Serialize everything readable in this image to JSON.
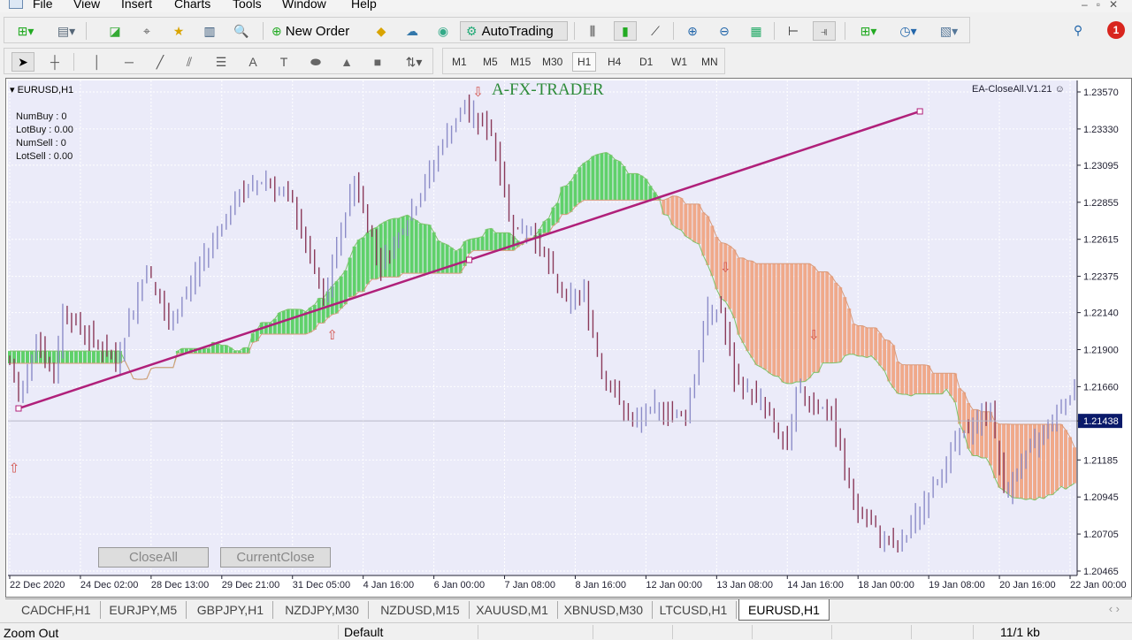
{
  "menu": [
    "File",
    "View",
    "Insert",
    "Charts",
    "Tools",
    "Window",
    "Help"
  ],
  "toolbar": {
    "new_order_label": "New Order",
    "autotrading_label": "AutoTrading",
    "icons": [
      "new-chart-icon",
      "profiles-icon",
      "market-watch-icon",
      "navigator-crosshair-icon",
      "favorites-icon",
      "terminal-icon",
      "strategy-tester-icon",
      "new-order-icon",
      "metaeditor-icon",
      "signals-icon",
      "radio-icon",
      "autotrading-icon",
      "bar-chart-icon",
      "candlestick-icon",
      "line-chart-icon",
      "zoom-in-icon",
      "zoom-out-icon",
      "tile-windows-icon",
      "chart-shift-icon",
      "auto-scroll-icon",
      "indicators-icon",
      "periods-icon",
      "templates-icon",
      "search-icon",
      "notifications-icon"
    ],
    "notification_count": "1"
  },
  "drawing_tools": [
    "cursor-icon",
    "crosshair-icon",
    "vertical-line-icon",
    "horizontal-line-icon",
    "trendline-icon",
    "equidistant-channel-icon",
    "fibonacci-icon",
    "text-icon",
    "text-label-icon",
    "ellipse-icon",
    "triangle-icon",
    "rectangle-icon",
    "arrows-icon"
  ],
  "timeframes": [
    "M1",
    "M5",
    "M15",
    "M30",
    "H1",
    "H4",
    "D1",
    "W1",
    "MN"
  ],
  "active_timeframe": "H1",
  "chart": {
    "symbol_label": "EURUSD,H1",
    "watermark": "A-FX-TRADER",
    "ea_label": "EA-CloseAll.V1.21",
    "info": [
      "NumBuy : 0",
      "LotBuy : 0.00",
      "NumSell : 0",
      "LotSell : 0.00"
    ],
    "buttons": {
      "close_all": "CloseAll",
      "current_close": "CurrentClose"
    },
    "colors": {
      "background": "#ebebf9",
      "bull_bar": "#8c8cc8",
      "bear_bar": "#8b3a5a",
      "cloud_up": "#5fd16a",
      "cloud_down": "#f0a98a",
      "trendline": "#b0207a",
      "price_label_bg": "#0a1a6a"
    }
  },
  "chart_data": {
    "type": "bar",
    "symbol": "EURUSD",
    "timeframe": "H1",
    "y_ticks": [
      "1.23570",
      "1.23330",
      "1.23095",
      "1.22855",
      "1.22615",
      "1.22375",
      "1.22140",
      "1.21900",
      "1.21660",
      "1.21438",
      "1.21185",
      "1.20945",
      "1.20705",
      "1.20465"
    ],
    "ylim": [
      1.20465,
      1.2357
    ],
    "current_price": "1.21438",
    "x_ticks": [
      "22 Dec 2020",
      "24 Dec 02:00",
      "28 Dec 13:00",
      "29 Dec 21:00",
      "31 Dec 05:00",
      "4 Jan 16:00",
      "6 Jan 00:00",
      "7 Jan 08:00",
      "8 Jan 16:00",
      "12 Jan 00:00",
      "13 Jan 08:00",
      "14 Jan 16:00",
      "18 Jan 00:00",
      "19 Jan 08:00",
      "20 Jan 16:00",
      "22 Jan 00:00"
    ],
    "bars_per_tick": 16,
    "close_keypoints": [
      [
        0,
        1.21811
      ],
      [
        2,
        1.21582
      ],
      [
        6,
        1.21983
      ],
      [
        10,
        1.21697
      ],
      [
        12,
        1.22155
      ],
      [
        16,
        1.2204
      ],
      [
        24,
        1.21811
      ],
      [
        31,
        1.22441
      ],
      [
        36,
        1.2204
      ],
      [
        46,
        1.22613
      ],
      [
        52,
        1.229
      ],
      [
        58,
        1.23014
      ],
      [
        64,
        1.22842
      ],
      [
        71,
        1.22212
      ],
      [
        78,
        1.23014
      ],
      [
        84,
        1.22441
      ],
      [
        92,
        1.22842
      ],
      [
        98,
        1.23243
      ],
      [
        103,
        1.23473
      ],
      [
        109,
        1.23301
      ],
      [
        114,
        1.22671
      ],
      [
        118,
        1.22671
      ],
      [
        126,
        1.22212
      ],
      [
        130,
        1.22269
      ],
      [
        134,
        1.21754
      ],
      [
        141,
        1.2141
      ],
      [
        146,
        1.21525
      ],
      [
        153,
        1.21467
      ],
      [
        158,
        1.22155
      ],
      [
        161,
        1.22155
      ],
      [
        164,
        1.21697
      ],
      [
        170,
        1.21582
      ],
      [
        176,
        1.21238
      ],
      [
        178,
        1.21639
      ],
      [
        186,
        1.21467
      ],
      [
        191,
        1.20895
      ],
      [
        198,
        1.20665
      ],
      [
        201,
        1.20608
      ],
      [
        208,
        1.20952
      ],
      [
        214,
        1.21296
      ],
      [
        222,
        1.21525
      ],
      [
        225,
        1.20952
      ],
      [
        228,
        1.21124
      ],
      [
        236,
        1.21467
      ],
      [
        241,
        1.21639
      ]
    ],
    "trendline": {
      "from": [
        2,
        1.21519
      ],
      "to": [
        206,
        1.23444
      ]
    },
    "up_arrows": [
      [
        1,
        1.21105
      ],
      [
        73,
        1.21965
      ]
    ],
    "down_arrows": [
      [
        106,
        1.2354
      ],
      [
        162,
        1.22405
      ],
      [
        182,
        1.21965
      ]
    ]
  },
  "tabs": [
    "CADCHF,H1",
    "EURJPY,M5",
    "GBPJPY,H1",
    "NZDJPY,M30",
    "NZDUSD,M15",
    "XAUUSD,M1",
    "XBNUSD,M30",
    "LTCUSD,H1",
    "EURUSD,H1"
  ],
  "active_tab": "EURUSD,H1",
  "status": {
    "hint": "Zoom Out",
    "profile": "Default",
    "traffic": "11/1 kb"
  }
}
